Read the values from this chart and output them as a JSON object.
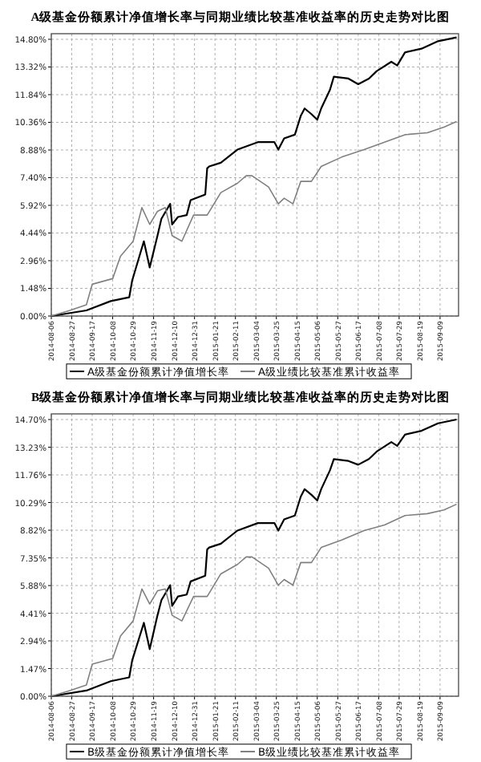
{
  "chart_data": [
    {
      "type": "line",
      "title": "A级基金份额累计净值增长率与同期业绩比较基准收益率的历史走势对比图",
      "grid": true,
      "legend": "bottom",
      "xlim": [
        "2014-08-06",
        "2015-09-28"
      ],
      "xticks": [
        "2014-08-06",
        "2014-08-27",
        "2014-09-17",
        "2014-10-08",
        "2014-10-29",
        "2014-11-19",
        "2014-12-10",
        "2014-12-31",
        "2015-01-21",
        "2015-02-11",
        "2015-03-04",
        "2015-03-25",
        "2015-04-15",
        "2015-05-06",
        "2015-05-27",
        "2015-06-17",
        "2015-07-08",
        "2015-07-29",
        "2015-08-19",
        "2015-09-09"
      ],
      "ylim": [
        0,
        15.1
      ],
      "yticks": [
        {
          "value": 0,
          "label": "0.00%"
        },
        {
          "value": 1.48,
          "label": "1.48%"
        },
        {
          "value": 2.96,
          "label": "2.96%"
        },
        {
          "value": 4.44,
          "label": "4.44%"
        },
        {
          "value": 5.92,
          "label": "5.92%"
        },
        {
          "value": 7.4,
          "label": "7.40%"
        },
        {
          "value": 8.88,
          "label": "8.88%"
        },
        {
          "value": 10.36,
          "label": "10.36%"
        },
        {
          "value": 11.84,
          "label": "11.84%"
        },
        {
          "value": 13.32,
          "label": "13.32%"
        },
        {
          "value": 14.8,
          "label": "14.80%"
        }
      ],
      "series": [
        {
          "name": "A级基金份额累计净值增长率",
          "color": "#000000",
          "x": [
            "2014-08-06",
            "2014-09-11",
            "2014-10-06",
            "2014-10-25",
            "2014-10-28",
            "2014-11-09",
            "2014-11-15",
            "2014-11-23",
            "2014-11-27",
            "2014-12-06",
            "2014-12-08",
            "2014-12-14",
            "2014-12-23",
            "2014-12-27",
            "2015-01-11",
            "2015-01-13",
            "2015-01-15",
            "2015-01-27",
            "2015-02-13",
            "2015-03-06",
            "2015-03-23",
            "2015-03-27",
            "2015-04-02",
            "2015-04-13",
            "2015-04-19",
            "2015-04-23",
            "2015-04-30",
            "2015-05-06",
            "2015-05-10",
            "2015-05-19",
            "2015-05-23",
            "2015-06-07",
            "2015-06-17",
            "2015-06-28",
            "2015-07-06",
            "2015-07-21",
            "2015-07-27",
            "2015-08-04",
            "2015-08-21",
            "2015-09-07",
            "2015-09-26"
          ],
          "values": [
            0,
            0.3,
            0.8,
            1.0,
            1.9,
            4.0,
            2.6,
            4.3,
            5.2,
            6.0,
            4.9,
            5.3,
            5.4,
            6.2,
            6.5,
            7.9,
            8.0,
            8.2,
            8.9,
            9.3,
            9.3,
            8.9,
            9.5,
            9.7,
            10.7,
            11.1,
            10.8,
            10.5,
            11.1,
            12.1,
            12.8,
            12.7,
            12.4,
            12.7,
            13.1,
            13.6,
            13.4,
            14.1,
            14.3,
            14.7,
            14.9
          ]
        },
        {
          "name": "A级业绩比较基准累计收益率",
          "color": "#808080",
          "x": [
            "2014-08-06",
            "2014-08-25",
            "2014-09-11",
            "2014-09-17",
            "2014-10-08",
            "2014-10-16",
            "2014-10-29",
            "2014-11-07",
            "2014-11-15",
            "2014-11-23",
            "2014-12-01",
            "2014-12-08",
            "2014-12-18",
            "2014-12-30",
            "2015-01-13",
            "2015-01-27",
            "2015-02-13",
            "2015-02-22",
            "2015-02-28",
            "2015-03-17",
            "2015-03-27",
            "2015-04-02",
            "2015-04-11",
            "2015-04-19",
            "2015-04-30",
            "2015-05-10",
            "2015-05-31",
            "2015-06-23",
            "2015-07-14",
            "2015-08-04",
            "2015-08-27",
            "2015-09-13",
            "2015-09-26"
          ],
          "values": [
            0,
            0.3,
            0.6,
            1.7,
            2.0,
            3.2,
            4.0,
            5.8,
            4.9,
            5.6,
            5.8,
            4.3,
            4.0,
            5.4,
            5.4,
            6.6,
            7.1,
            7.5,
            7.5,
            6.9,
            6.0,
            6.3,
            6.0,
            7.2,
            7.2,
            8.0,
            8.5,
            8.9,
            9.3,
            9.7,
            9.8,
            10.1,
            10.4
          ]
        }
      ]
    },
    {
      "type": "line",
      "title": "B级基金份额累计净值增长率与同期业绩比较基准收益率的历史走势对比图",
      "grid": true,
      "legend": "bottom",
      "xlim": [
        "2014-08-06",
        "2015-09-28"
      ],
      "xticks": [
        "2014-08-06",
        "2014-08-27",
        "2014-09-17",
        "2014-10-08",
        "2014-10-29",
        "2014-11-19",
        "2014-12-10",
        "2014-12-31",
        "2015-01-21",
        "2015-02-11",
        "2015-03-04",
        "2015-03-25",
        "2015-04-15",
        "2015-05-06",
        "2015-05-27",
        "2015-06-17",
        "2015-07-08",
        "2015-07-29",
        "2015-08-19",
        "2015-09-09"
      ],
      "ylim": [
        0,
        15.0
      ],
      "yticks": [
        {
          "value": 0,
          "label": "0.00%"
        },
        {
          "value": 1.47,
          "label": "1.47%"
        },
        {
          "value": 2.94,
          "label": "2.94%"
        },
        {
          "value": 4.41,
          "label": "4.41%"
        },
        {
          "value": 5.88,
          "label": "5.88%"
        },
        {
          "value": 7.35,
          "label": "7.35%"
        },
        {
          "value": 8.82,
          "label": "8.82%"
        },
        {
          "value": 10.29,
          "label": "10.29%"
        },
        {
          "value": 11.76,
          "label": "11.76%"
        },
        {
          "value": 13.23,
          "label": "13.23%"
        },
        {
          "value": 14.7,
          "label": "14.70%"
        }
      ],
      "series": [
        {
          "name": "B级基金份额累计净值增长率",
          "color": "#000000",
          "x": [
            "2014-08-06",
            "2014-09-11",
            "2014-10-06",
            "2014-10-25",
            "2014-10-28",
            "2014-11-09",
            "2014-11-15",
            "2014-11-23",
            "2014-11-27",
            "2014-12-06",
            "2014-12-08",
            "2014-12-14",
            "2014-12-23",
            "2014-12-27",
            "2015-01-11",
            "2015-01-13",
            "2015-01-15",
            "2015-01-27",
            "2015-02-13",
            "2015-03-06",
            "2015-03-23",
            "2015-03-27",
            "2015-04-02",
            "2015-04-13",
            "2015-04-19",
            "2015-04-23",
            "2015-04-30",
            "2015-05-06",
            "2015-05-10",
            "2015-05-19",
            "2015-05-23",
            "2015-06-07",
            "2015-06-17",
            "2015-06-28",
            "2015-07-06",
            "2015-07-21",
            "2015-07-27",
            "2015-08-04",
            "2015-08-21",
            "2015-09-07",
            "2015-09-26"
          ],
          "values": [
            0,
            0.3,
            0.8,
            1.0,
            1.9,
            3.9,
            2.5,
            4.3,
            5.1,
            5.9,
            4.8,
            5.3,
            5.4,
            6.1,
            6.4,
            7.8,
            7.9,
            8.1,
            8.8,
            9.2,
            9.2,
            8.8,
            9.4,
            9.6,
            10.6,
            11.0,
            10.7,
            10.4,
            11.0,
            12.0,
            12.6,
            12.5,
            12.3,
            12.6,
            13.0,
            13.5,
            13.3,
            13.9,
            14.1,
            14.5,
            14.7
          ]
        },
        {
          "name": "B级业绩比较基准累计收益率",
          "color": "#808080",
          "x": [
            "2014-08-06",
            "2014-08-25",
            "2014-09-11",
            "2014-09-17",
            "2014-10-08",
            "2014-10-16",
            "2014-10-29",
            "2014-11-07",
            "2014-11-15",
            "2014-11-23",
            "2014-12-01",
            "2014-12-08",
            "2014-12-18",
            "2014-12-30",
            "2015-01-13",
            "2015-01-27",
            "2015-02-13",
            "2015-02-22",
            "2015-02-28",
            "2015-03-17",
            "2015-03-27",
            "2015-04-02",
            "2015-04-11",
            "2015-04-19",
            "2015-04-30",
            "2015-05-10",
            "2015-05-31",
            "2015-06-23",
            "2015-07-14",
            "2015-08-04",
            "2015-08-27",
            "2015-09-13",
            "2015-09-26"
          ],
          "values": [
            0,
            0.3,
            0.6,
            1.7,
            2.0,
            3.2,
            4.0,
            5.7,
            4.9,
            5.6,
            5.7,
            4.3,
            4.0,
            5.3,
            5.3,
            6.5,
            7.0,
            7.4,
            7.4,
            6.8,
            5.9,
            6.2,
            5.9,
            7.1,
            7.1,
            7.9,
            8.3,
            8.8,
            9.1,
            9.6,
            9.7,
            9.9,
            10.2
          ]
        }
      ]
    }
  ]
}
